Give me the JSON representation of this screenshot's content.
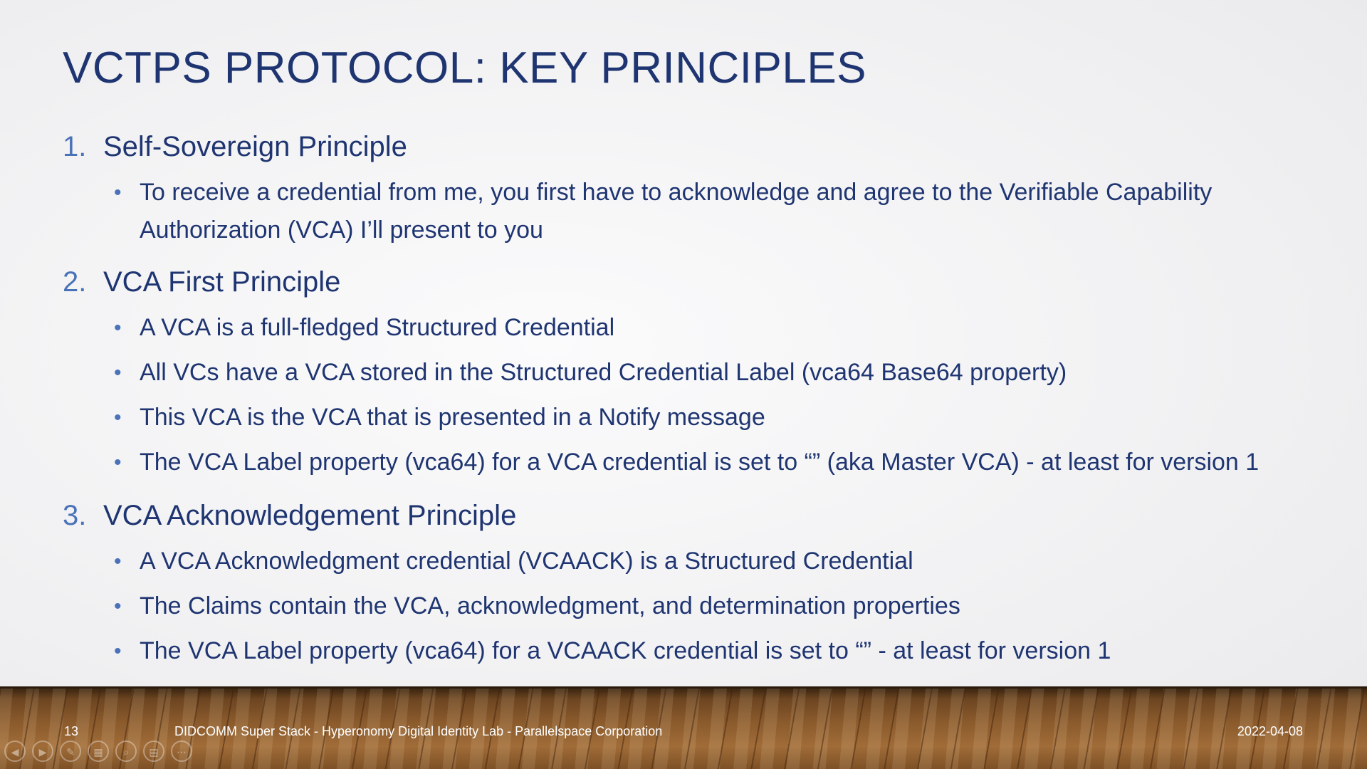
{
  "slide": {
    "title": "VCTPS PROTOCOL: KEY PRINCIPLES",
    "sections": [
      {
        "number": "1.",
        "heading": "Self-Sovereign Principle",
        "bullets": [
          "To receive a credential from me, you first have to acknowledge and agree to the Verifiable Capability Authorization (VCA) I’ll present to you"
        ]
      },
      {
        "number": "2.",
        "heading": "VCA First Principle",
        "bullets": [
          "A VCA is a full-fledged Structured Credential",
          "All VCs have a VCA stored in the Structured Credential Label (vca64 Base64 property)",
          "This VCA is the VCA that is presented in a Notify message",
          "The VCA Label property (vca64) for a VCA credential is set to “” (aka Master VCA) - at least for version 1"
        ]
      },
      {
        "number": "3.",
        "heading": "VCA Acknowledgement Principle",
        "bullets": [
          "A VCA Acknowledgment credential (VCAACK) is a Structured Credential",
          "The Claims contain the VCA, acknowledgment, and determination properties",
          "The VCA Label property (vca64) for a VCAACK credential is set to “” - at least for version 1"
        ]
      }
    ]
  },
  "footer": {
    "page_number": "13",
    "title": "DIDCOMM Super Stack - Hyperonomy Digital Identity Lab - Parallelspace Corporation",
    "date": "2022-04-08"
  },
  "controls": {
    "previous": "◀",
    "next": "▶",
    "pen": "✎",
    "slides": "▦",
    "zoom": "⌕",
    "subtitles": "▤",
    "more": "⋯"
  },
  "colors": {
    "title": "#1f3571",
    "numbering": "#4a72b8",
    "footer_text": "#ffffff"
  }
}
